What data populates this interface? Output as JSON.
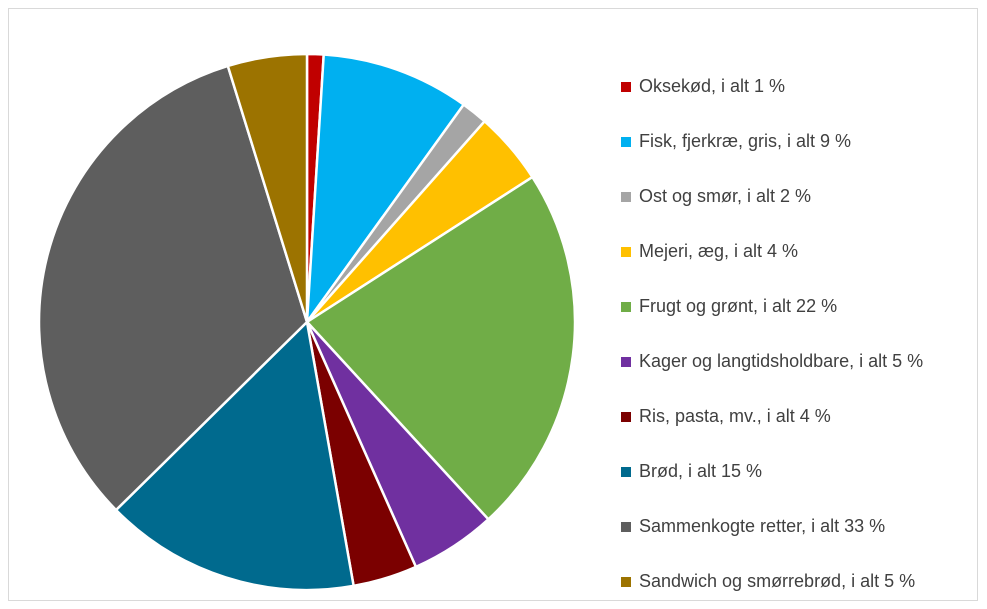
{
  "chart_data": {
    "type": "pie",
    "title": "",
    "slices": [
      {
        "label": "Oksekød, i alt 1 %",
        "value": 1,
        "color": "#C00000"
      },
      {
        "label": "Fisk, fjerkræ, gris, i alt 9 %",
        "value": 9,
        "color": "#00B0F0"
      },
      {
        "label": "Ost og smør, i alt 2 %",
        "value": 1.6,
        "color": "#A5A5A5"
      },
      {
        "label": "Mejeri, æg, i alt 4 %",
        "value": 4.4,
        "color": "#FFC000"
      },
      {
        "label": "Frugt og grønt, i alt 22 %",
        "value": 22.4,
        "color": "#70AD47"
      },
      {
        "label": "Kager og langtidsholdbare, i alt 5 %",
        "value": 5.2,
        "color": "#7030A0"
      },
      {
        "label": "Ris, pasta, mv., i alt 4 %",
        "value": 3.9,
        "color": "#7B0000"
      },
      {
        "label": "Brød, i alt 15 %",
        "value": 15.5,
        "color": "#006A8E"
      },
      {
        "label": "Sammenkogte retter, i alt 33 %",
        "value": 32.8,
        "color": "#5E5E5E"
      },
      {
        "label": "Sandwich og smørrebrød, i alt 5 %",
        "value": 4.8,
        "color": "#9C7300"
      }
    ],
    "legend_position": "right"
  }
}
